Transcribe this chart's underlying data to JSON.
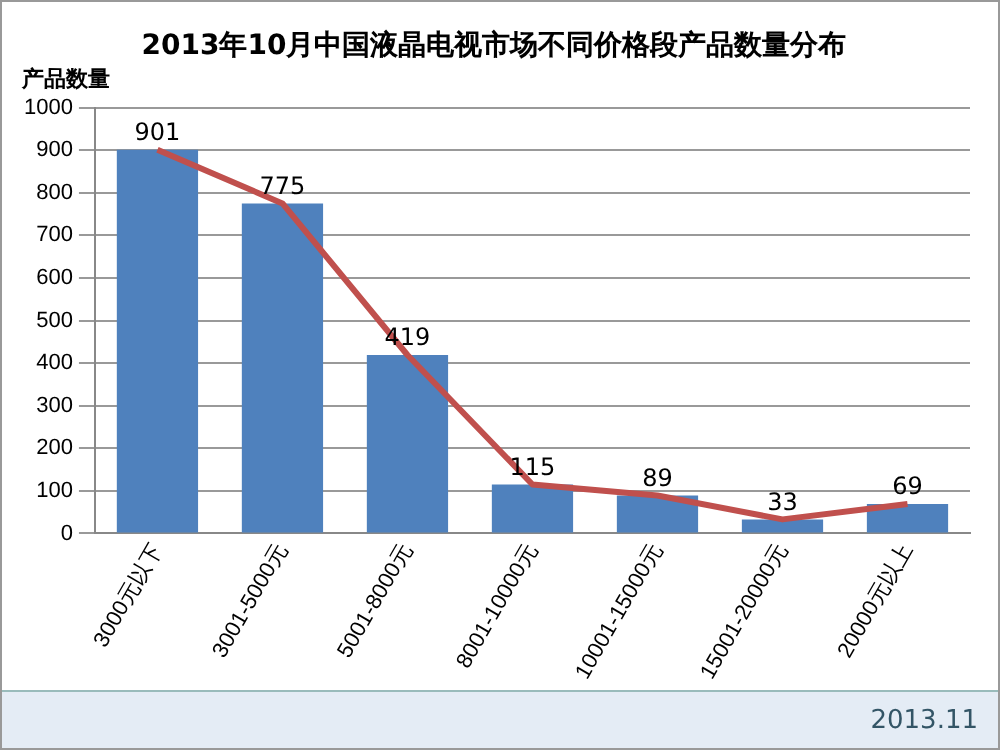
{
  "chart_data": {
    "type": "bar",
    "title": "2013年10月中国液晶电视市场不同价格段产品数量分布",
    "ylabel": "产品数量",
    "categories": [
      "3000元以下",
      "3001-5000元",
      "5001-8000元",
      "8001-10000元",
      "10001-15000元",
      "15001-20000元",
      "20000元以上"
    ],
    "series": [
      {
        "color": "#4f81bd",
        "values": [
          901,
          775,
          419,
          115,
          89,
          33,
          69
        ],
        "value_labels": [
          "901",
          "775",
          "419",
          "115",
          "89",
          "33",
          "69"
        ]
      },
      {
        "type": "line",
        "color": "#c0504d",
        "values": [
          901,
          775,
          419,
          115,
          89,
          33,
          69
        ]
      }
    ],
    "ylim": [
      0,
      1000
    ],
    "yticks": [
      0,
      100,
      200,
      300,
      400,
      500,
      600,
      700,
      800,
      900,
      1000
    ],
    "grid": "y",
    "legend": false,
    "marker": "none",
    "annotations": [
      "2013.11"
    ]
  }
}
